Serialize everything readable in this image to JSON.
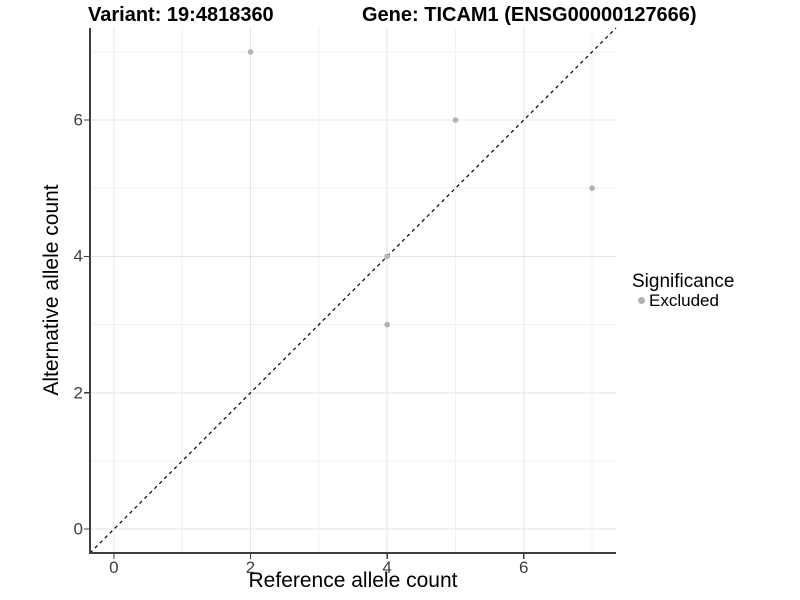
{
  "colors": {
    "background": "#ffffff",
    "grid_major": "#e4e4e4",
    "grid_minor": "#f1f1f1",
    "axis_line": "#3d3d3d",
    "tick_text": "#404040",
    "title_text": "#000000",
    "point": "#b2b2b2",
    "diagonal": "#000000"
  },
  "legend": {
    "title": "Significance",
    "items": [
      {
        "label": "Excluded",
        "color": "#b2b2b2"
      }
    ]
  },
  "chart_data": {
    "type": "scatter",
    "titles": [
      "Variant: 19:4818360",
      "Gene: TICAM1 (ENSG00000127666)"
    ],
    "xlabel": "Reference allele count",
    "ylabel": "Alternative allele count",
    "xlim": [
      -0.35,
      7.35
    ],
    "ylim": [
      -0.35,
      7.35
    ],
    "x_ticks": [
      0,
      2,
      4,
      6
    ],
    "y_ticks": [
      0,
      2,
      4,
      6
    ],
    "x_minor": [
      1,
      3,
      5,
      7
    ],
    "y_minor": [
      1,
      3,
      5,
      7
    ],
    "grid": true,
    "series": [
      {
        "name": "Excluded",
        "color": "#b2b2b2",
        "points": [
          [
            2,
            7
          ],
          [
            5,
            6
          ],
          [
            7,
            5
          ],
          [
            4,
            4
          ],
          [
            4,
            3
          ]
        ]
      }
    ],
    "diagonal": {
      "style": "dashed",
      "color": "#000000",
      "from": [
        -0.35,
        -0.35
      ],
      "to": [
        7.35,
        7.35
      ]
    },
    "legend": {
      "title": "Significance",
      "position": "right"
    }
  }
}
